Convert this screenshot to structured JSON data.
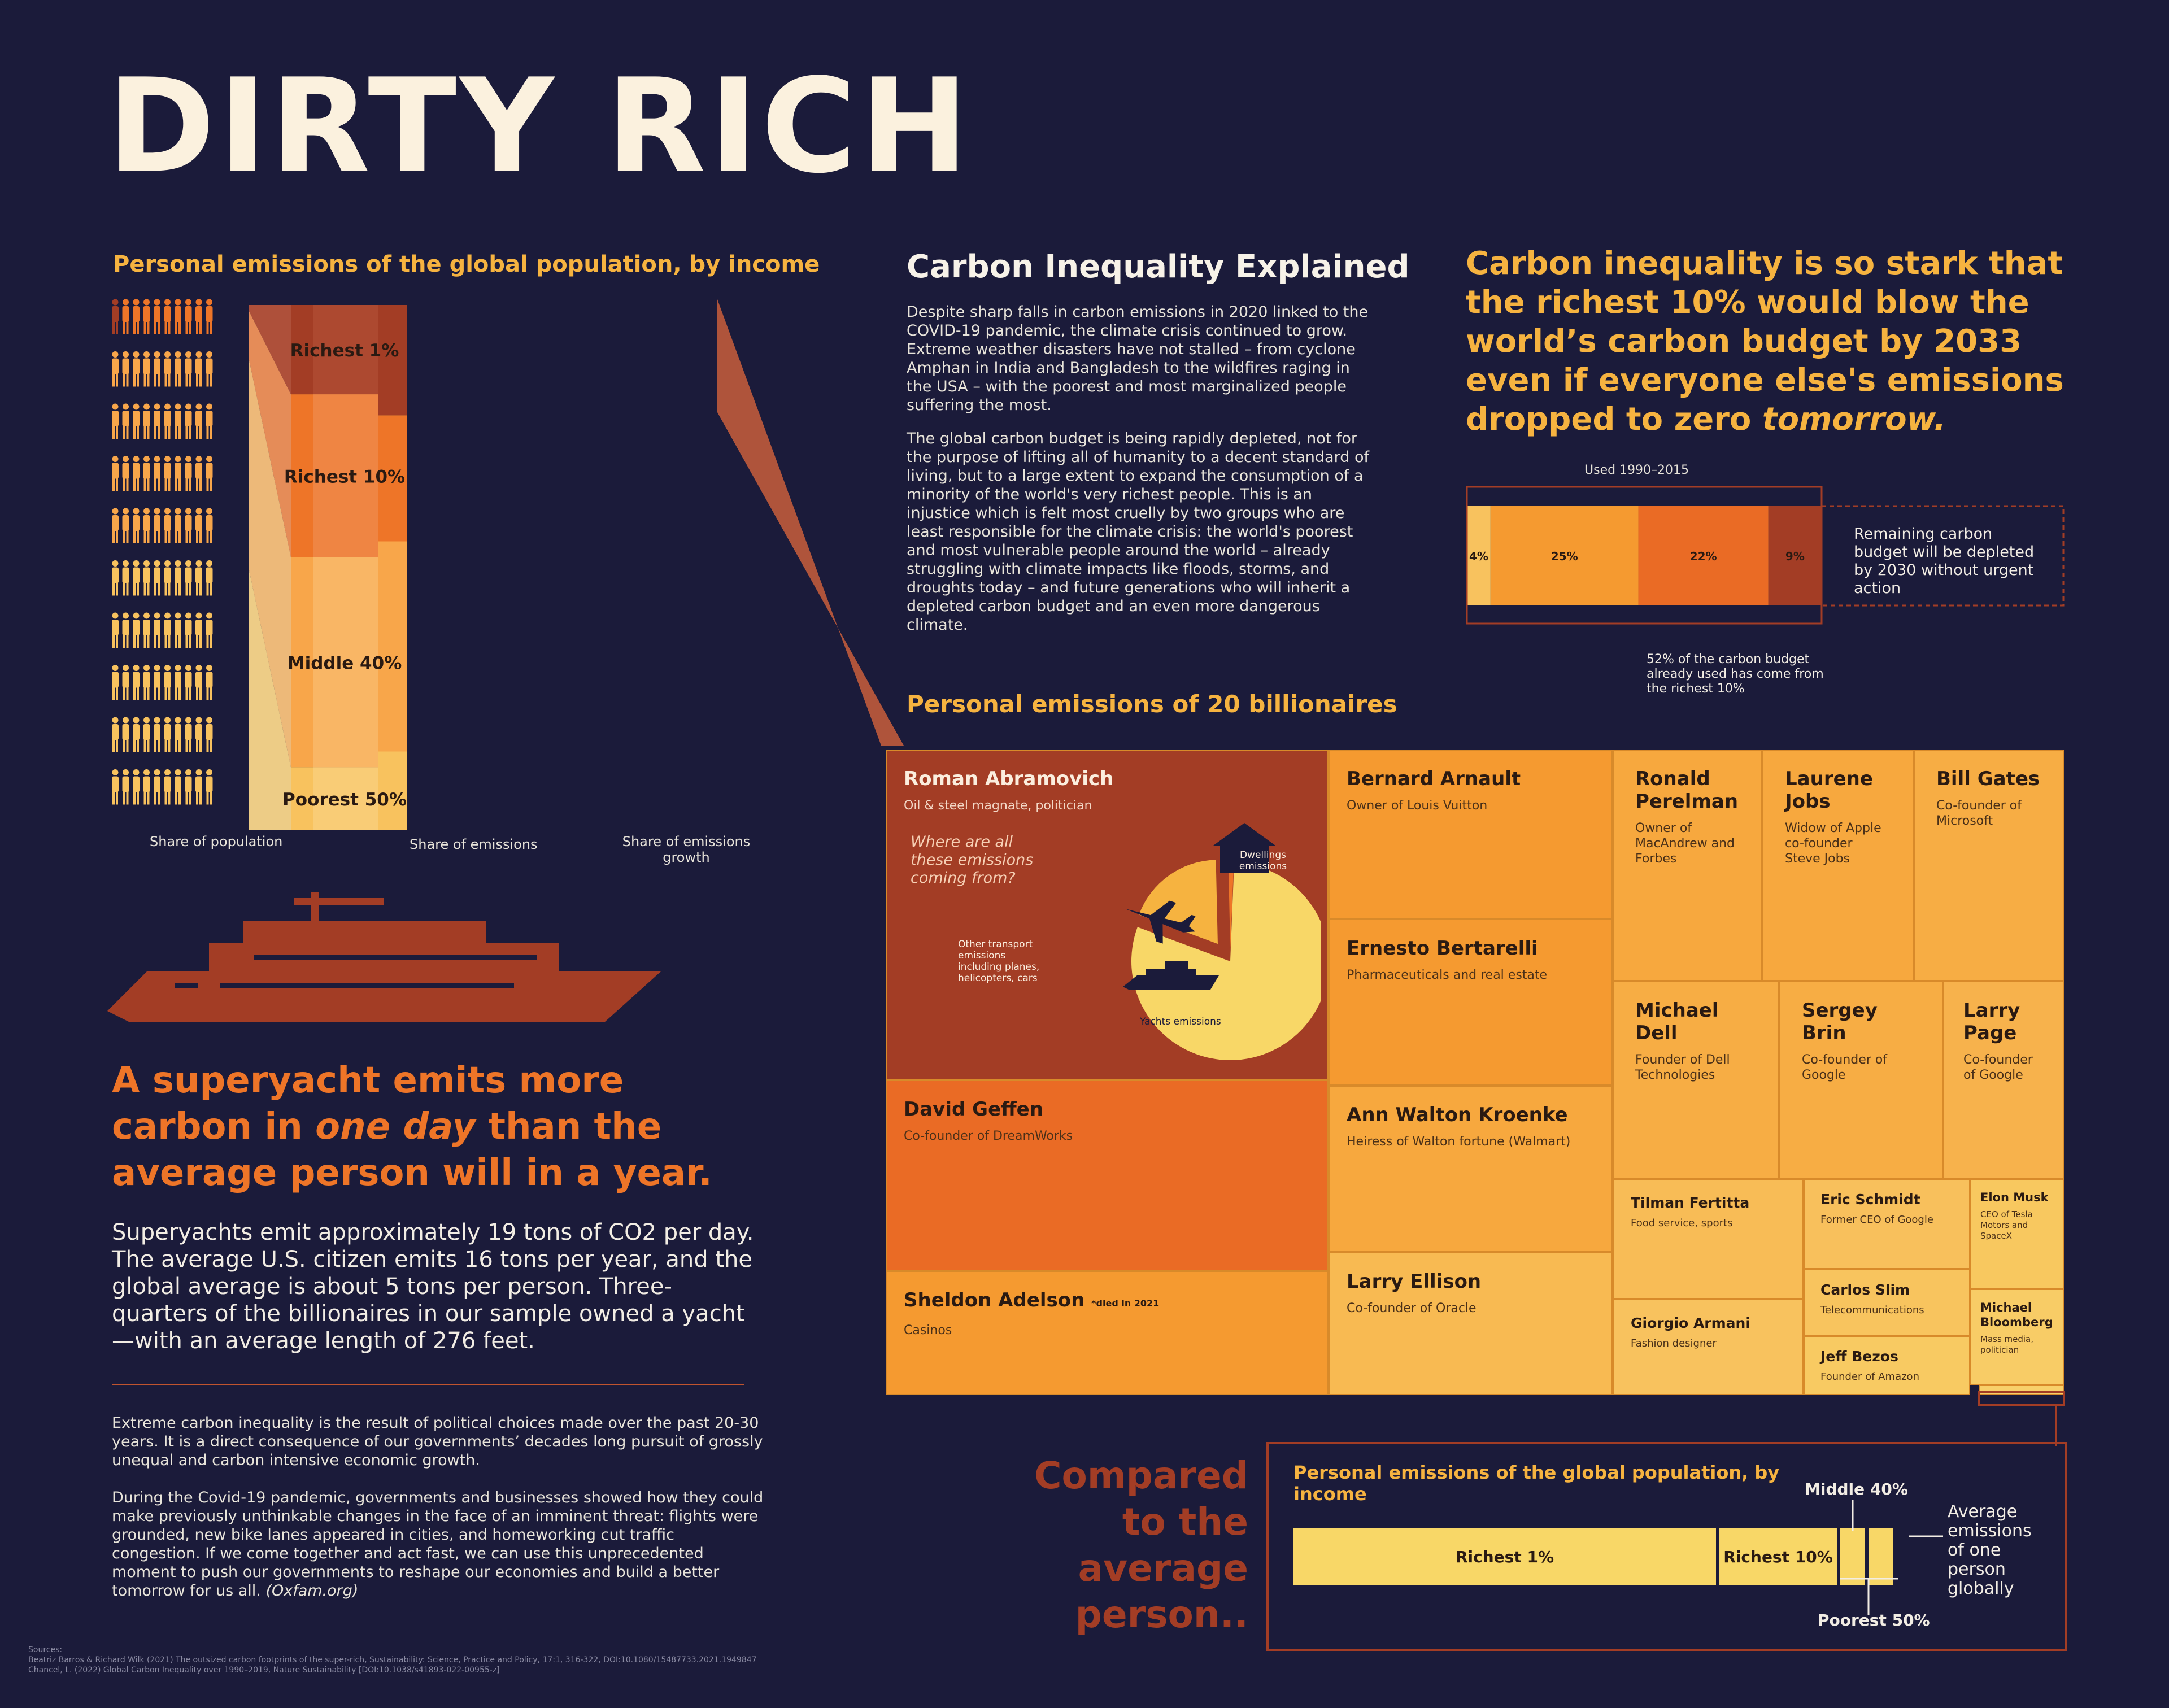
{
  "title": "DIRTY RICH",
  "income_chart": {
    "heading": "Personal emissions of the global population, by income",
    "groups": [
      {
        "name": "Richest 1%",
        "population_share": 1,
        "emissions_share": 17,
        "growth_share": 21,
        "color": "#a33d25"
      },
      {
        "name": "Richest 10%",
        "population_share": 9,
        "emissions_share": 31,
        "growth_share": 24,
        "color": "#ee7528"
      },
      {
        "name": "Middle 40%",
        "population_share": 40,
        "emissions_share": 40,
        "growth_share": 40,
        "color": "#f8a64a"
      },
      {
        "name": "Poorest 50%",
        "population_share": 50,
        "emissions_share": 12,
        "growth_share": 15,
        "color": "#f8c25e"
      }
    ],
    "x_labels": [
      "Share of population",
      "Share of emissions",
      "Share of emissions growth"
    ]
  },
  "yacht": {
    "headline_part1": "A superyacht emits more carbon in",
    "headline_italic": "one day",
    "headline_part2": "than the average person will in a year.",
    "body": "Superyachts emit approximately 19 tons of CO2 per day. The average U.S. citizen emits 16 tons per year, and the global average is about 5 tons per person. Three-quarters of the billionaires in our sample owned a yacht—with an average length of 276 feet."
  },
  "footer_text": {
    "p1": "Extreme carbon inequality is the result of political choices made over the past 20-30 years. It is a direct consequence of our governments’ decades long pursuit of grossly unequal and carbon intensive economic growth.",
    "p2": "During the Covid-19 pandemic, governments and businesses showed how they could make previously unthinkable changes in the face of an imminent threat: flights were grounded, new bike lanes appeared in cities, and homeworking cut traffic congestion. If we come together and act fast, we can use this unprecedented moment to push our governments to reshape our economies and build a better tomorrow for us all.",
    "p2_source": "(Oxfam.org)",
    "sources_label": "Sources:",
    "source1": "Beatriz Barros & Richard Wilk (2021) The outsized carbon footprints of the super-rich, Sustainability: Science, Practice and Policy, 17:1, 316-322, DOI:10.1080/15487733.2021.1949847",
    "source2": "Chancel, L. (2022) Global Carbon Inequality over 1990–2019, Nature Sustainability [DOI:10.1038/s41893-022-00955-z]"
  },
  "explained": {
    "heading": "Carbon Inequality Explained",
    "p1": "Despite sharp falls in carbon emissions in 2020 linked to the COVID-19 pandemic, the climate crisis continued to grow. Extreme weather disasters have not stalled – from cyclone Amphan in India and Bangladesh to the wildfires raging in the USA – with the poorest and most marginalized people suffering the most.",
    "p2": "The global carbon budget is being rapidly depleted, not for the purpose of lifting all of humanity to a decent standard of living, but to a large extent to expand the consumption of a minority of the world's very richest people. This is an injustice which is felt most cruelly by two groups who are least responsible for the climate crisis: the world's poorest and most vulnerable people around the world – already struggling with climate impacts like floods, storms, and droughts today – and future generations who will inherit a depleted carbon budget and an even more dangerous climate."
  },
  "budget": {
    "headline_main": "Carbon inequality is so stark that the richest 10% would blow the world’s carbon budget by 2033 even if everyone else's emissions dropped to zero",
    "headline_italic": "tomorrow.",
    "used_label": "Used 1990–2015",
    "segments": [
      {
        "label": "4%",
        "value": 4,
        "color": "#f8c25e"
      },
      {
        "label": "25%",
        "value": 25,
        "color": "#f59a30"
      },
      {
        "label": "22%",
        "value": 22,
        "color": "#ea6b25"
      },
      {
        "label": "9%",
        "value": 9,
        "color": "#a33d25"
      }
    ],
    "remaining_label": "Remaining carbon budget will be depleted by 2030 without urgent action",
    "note": "52% of the carbon budget already used has come from the richest 10%"
  },
  "billionaires": {
    "heading": "Personal emissions of 20 billionaires",
    "people": [
      {
        "name": "Roman Abramovich",
        "desc": "Oil & steel magnate, politician"
      },
      {
        "name": "Bernard Arnault",
        "desc": "Owner of Louis Vuitton"
      },
      {
        "name": "Ronald Perelman",
        "desc": "Owner of MacAndrew and Forbes"
      },
      {
        "name": "Laurene Jobs",
        "desc": "Widow of Apple co-founder Steve Jobs"
      },
      {
        "name": "Bill Gates",
        "desc": "Co-founder of Microsoft"
      },
      {
        "name": "Ernesto Bertarelli",
        "desc": "Pharmaceuticals and real estate"
      },
      {
        "name": "Michael Dell",
        "desc": "Founder of Dell Technologies"
      },
      {
        "name": "Sergey Brin",
        "desc": "Co-founder of Google"
      },
      {
        "name": "Larry Page",
        "desc": "Co-founder of Google"
      },
      {
        "name": "David Geffen",
        "desc": "Co-founder of DreamWorks"
      },
      {
        "name": "Ann Walton Kroenke",
        "desc": "Heiress of Walton fortune (Walmart)"
      },
      {
        "name": "Tilman Fertitta",
        "desc": "Food service, sports"
      },
      {
        "name": "Eric Schmidt",
        "desc": "Former CEO of Google"
      },
      {
        "name": "Elon Musk",
        "desc": "CEO of Tesla Motors and SpaceX"
      },
      {
        "name": "Carlos Slim",
        "desc": "Telecommunications"
      },
      {
        "name": "Sheldon Adelson",
        "desc": "Casinos",
        "note": "*died in 2021"
      },
      {
        "name": "Larry Ellison",
        "desc": "Co-founder of Oracle"
      },
      {
        "name": "Giorgio Armani",
        "desc": "Fashion designer"
      },
      {
        "name": "Jeff Bezos",
        "desc": "Founder of Amazon"
      },
      {
        "name": "Michael Bloomberg",
        "desc": "Mass media, politician"
      }
    ],
    "pie": {
      "question": "Where are all these emissions coming from?",
      "slices": [
        {
          "label": "Yachts emissions",
          "value": 80
        },
        {
          "label": "Other transport emissions including planes, helicopters, cars",
          "value": 19
        },
        {
          "label": "Dwellings emissions",
          "value": 1
        }
      ]
    }
  },
  "compared": {
    "headline": "Compared to the average person..",
    "chart_heading": "Personal emissions of the global population, by income",
    "bar_labels": [
      "Richest 1%",
      "Richest 10%",
      "Middle 40%",
      "Poorest 50%"
    ],
    "avg_label": "Average emissions of one person globally"
  },
  "colors": {
    "background": "#1b1b3a",
    "accent_yellow": "#f6b340",
    "accent_orange": "#ee7528",
    "dark_red": "#a33d25",
    "title": "#fbf1de"
  },
  "chart_data": [
    {
      "type": "area",
      "title": "Personal emissions of the global population, by income",
      "categories": [
        "Share of population",
        "Share of emissions",
        "Share of emissions growth"
      ],
      "series": [
        {
          "name": "Richest 1%",
          "values": [
            1,
            17,
            21
          ]
        },
        {
          "name": "Richest 10%",
          "values": [
            9,
            31,
            24
          ]
        },
        {
          "name": "Middle 40%",
          "values": [
            40,
            40,
            40
          ]
        },
        {
          "name": "Poorest 50%",
          "values": [
            50,
            12,
            15
          ]
        }
      ]
    },
    {
      "type": "bar",
      "title": "",
      "categories": [
        "4%",
        "25%",
        "22%",
        "9%"
      ],
      "values": [
        4,
        25,
        22,
        9
      ]
    },
    {
      "type": "pie",
      "title": "Where are all these emissions coming from?",
      "categories": [
        "Yachts emissions",
        "Other transport emissions including planes, helicopters, cars",
        "Dwellings emissions"
      ],
      "values": [
        80,
        19,
        1
      ]
    }
  ]
}
